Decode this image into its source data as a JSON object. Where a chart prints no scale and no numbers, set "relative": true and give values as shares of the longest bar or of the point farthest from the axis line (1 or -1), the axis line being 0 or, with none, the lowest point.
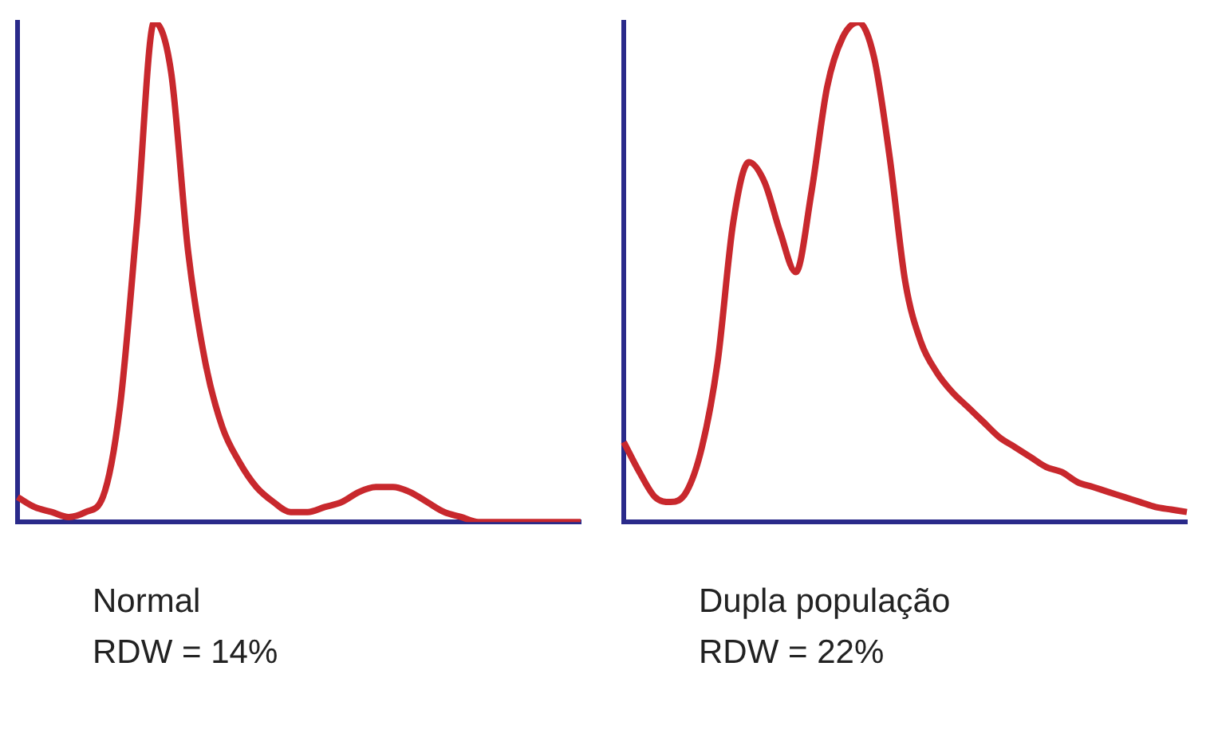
{
  "chart_data": [
    {
      "type": "line",
      "title": "Normal",
      "subtitle": "RDW = 14%",
      "relative": true,
      "grid": false,
      "legend": false,
      "marker": "none",
      "categories": [
        null,
        null,
        null,
        null,
        null,
        null,
        null,
        null,
        null,
        null,
        null,
        null,
        null,
        null,
        null,
        null,
        null,
        null,
        null,
        null,
        null,
        null,
        null,
        null,
        null,
        null,
        null,
        null,
        null,
        null,
        null,
        null,
        null,
        null
      ],
      "series": [
        {
          "color": "#c8282d",
          "values": [
            0.05,
            0.03,
            0.02,
            0.01,
            0.02,
            0.05,
            0.23,
            0.6,
            1.0,
            0.9,
            0.54,
            0.32,
            0.19,
            0.12,
            0.07,
            0.04,
            0.02,
            0.02,
            0.03,
            0.04,
            0.06,
            0.07,
            0.07,
            0.06,
            0.04,
            0.02,
            0.01,
            0,
            0,
            0,
            0,
            0,
            0,
            0
          ]
        }
      ]
    },
    {
      "type": "line",
      "title": "Dupla população",
      "subtitle": "RDW = 22%",
      "relative": true,
      "grid": false,
      "legend": false,
      "marker": "none",
      "categories": [
        null,
        null,
        null,
        null,
        null,
        null,
        null,
        null,
        null,
        null,
        null,
        null,
        null,
        null,
        null,
        null,
        null,
        null,
        null,
        null,
        null,
        null,
        null,
        null,
        null,
        null,
        null,
        null,
        null,
        null,
        null,
        null,
        null,
        null,
        null,
        null,
        null
      ],
      "series": [
        {
          "color": "#c8282d",
          "values": [
            0.16,
            0.1,
            0.05,
            0.04,
            0.06,
            0.15,
            0.32,
            0.6,
            0.72,
            0.68,
            0.58,
            0.5,
            0.66,
            0.87,
            0.97,
            1.0,
            0.93,
            0.73,
            0.48,
            0.36,
            0.3,
            0.26,
            0.23,
            0.2,
            0.17,
            0.15,
            0.13,
            0.11,
            0.1,
            0.08,
            0.07,
            0.06,
            0.05,
            0.04,
            0.03,
            0.025,
            0.02
          ]
        }
      ]
    }
  ]
}
